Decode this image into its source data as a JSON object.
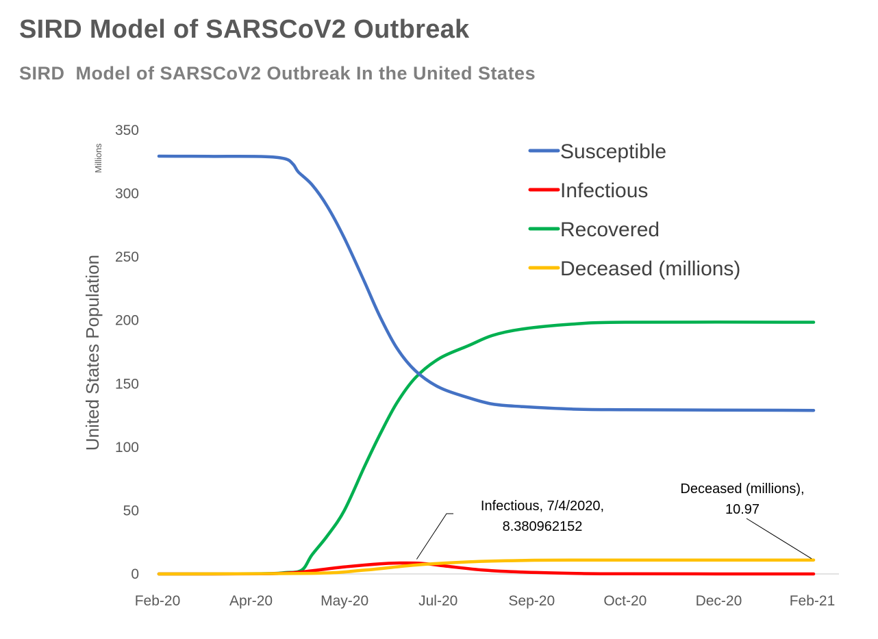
{
  "title": "SIRD Model of SARSCoV2 Outbreak",
  "subtitle": "SIRD  Model of SARSCoV2 Outbreak In the United States",
  "chart_data": {
    "type": "line",
    "ylabel": "United States Population",
    "y_units": "Millions",
    "ylim": [
      0,
      350
    ],
    "yticks": [
      0,
      50,
      100,
      150,
      200,
      250,
      300,
      350
    ],
    "xlim": [
      "2020-02-01",
      "2021-02-20"
    ],
    "xticks": [
      "Feb-20",
      "Apr-20",
      "May-20",
      "Jul-20",
      "Sep-20",
      "Oct-20",
      "Dec-20",
      "Feb-21"
    ],
    "grid": false,
    "legend_position": "top-right",
    "series": [
      {
        "name": "Susceptible",
        "color": "#4472C4",
        "points": [
          [
            "2020-02-01",
            329.5
          ],
          [
            "2020-03-01",
            329.3
          ],
          [
            "2020-04-01",
            329.2
          ],
          [
            "2020-04-15",
            327.5
          ],
          [
            "2020-04-20",
            323
          ],
          [
            "2020-04-23",
            317
          ],
          [
            "2020-05-01",
            307
          ],
          [
            "2020-05-10",
            290
          ],
          [
            "2020-05-20",
            265
          ],
          [
            "2020-06-01",
            230
          ],
          [
            "2020-06-10",
            203
          ],
          [
            "2020-06-20",
            178
          ],
          [
            "2020-07-01",
            160
          ],
          [
            "2020-07-15",
            147
          ],
          [
            "2020-08-01",
            139
          ],
          [
            "2020-08-15",
            134
          ],
          [
            "2020-09-01",
            132
          ],
          [
            "2020-10-01",
            130
          ],
          [
            "2020-11-01",
            129.5
          ],
          [
            "2021-02-20",
            129
          ]
        ]
      },
      {
        "name": "Infectious",
        "color": "#FF0000",
        "points": [
          [
            "2020-02-01",
            0
          ],
          [
            "2020-04-01",
            0.1
          ],
          [
            "2020-04-20",
            1
          ],
          [
            "2020-05-01",
            2.5
          ],
          [
            "2020-05-20",
            5.5
          ],
          [
            "2020-06-10",
            8
          ],
          [
            "2020-06-20",
            8.6
          ],
          [
            "2020-07-04",
            8.38
          ],
          [
            "2020-07-20",
            6
          ],
          [
            "2020-08-10",
            3
          ],
          [
            "2020-09-01",
            1.5
          ],
          [
            "2020-10-01",
            0.5
          ],
          [
            "2020-11-01",
            0.1
          ],
          [
            "2021-02-20",
            0
          ]
        ]
      },
      {
        "name": "Recovered",
        "color": "#00B050",
        "points": [
          [
            "2020-02-01",
            0
          ],
          [
            "2020-04-01",
            0.2
          ],
          [
            "2020-04-15",
            1
          ],
          [
            "2020-04-25",
            3
          ],
          [
            "2020-05-01",
            15
          ],
          [
            "2020-05-10",
            30
          ],
          [
            "2020-05-20",
            50
          ],
          [
            "2020-06-01",
            85
          ],
          [
            "2020-06-10",
            110
          ],
          [
            "2020-06-20",
            135
          ],
          [
            "2020-07-01",
            155
          ],
          [
            "2020-07-15",
            170
          ],
          [
            "2020-08-01",
            180
          ],
          [
            "2020-08-15",
            188
          ],
          [
            "2020-09-01",
            193
          ],
          [
            "2020-10-01",
            197
          ],
          [
            "2020-11-01",
            198.5
          ],
          [
            "2021-02-20",
            198.5
          ]
        ]
      },
      {
        "name": "Deceased (millions)",
        "color": "#FFC000",
        "points": [
          [
            "2020-02-01",
            0
          ],
          [
            "2020-05-01",
            0.5
          ],
          [
            "2020-06-01",
            3
          ],
          [
            "2020-07-01",
            7
          ],
          [
            "2020-08-01",
            9.5
          ],
          [
            "2020-09-01",
            10.6
          ],
          [
            "2020-10-01",
            10.9
          ],
          [
            "2021-02-20",
            10.97
          ]
        ]
      }
    ],
    "annotations": [
      {
        "series": "Infectious",
        "lines": [
          "Infectious, 7/4/2020,",
          "8.380962152"
        ],
        "point": [
          "2020-07-04",
          8.38
        ]
      },
      {
        "series": "Deceased (millions)",
        "lines": [
          "Deceased (millions),",
          "10.97"
        ],
        "point": [
          "2021-02-20",
          10.97
        ]
      }
    ]
  }
}
